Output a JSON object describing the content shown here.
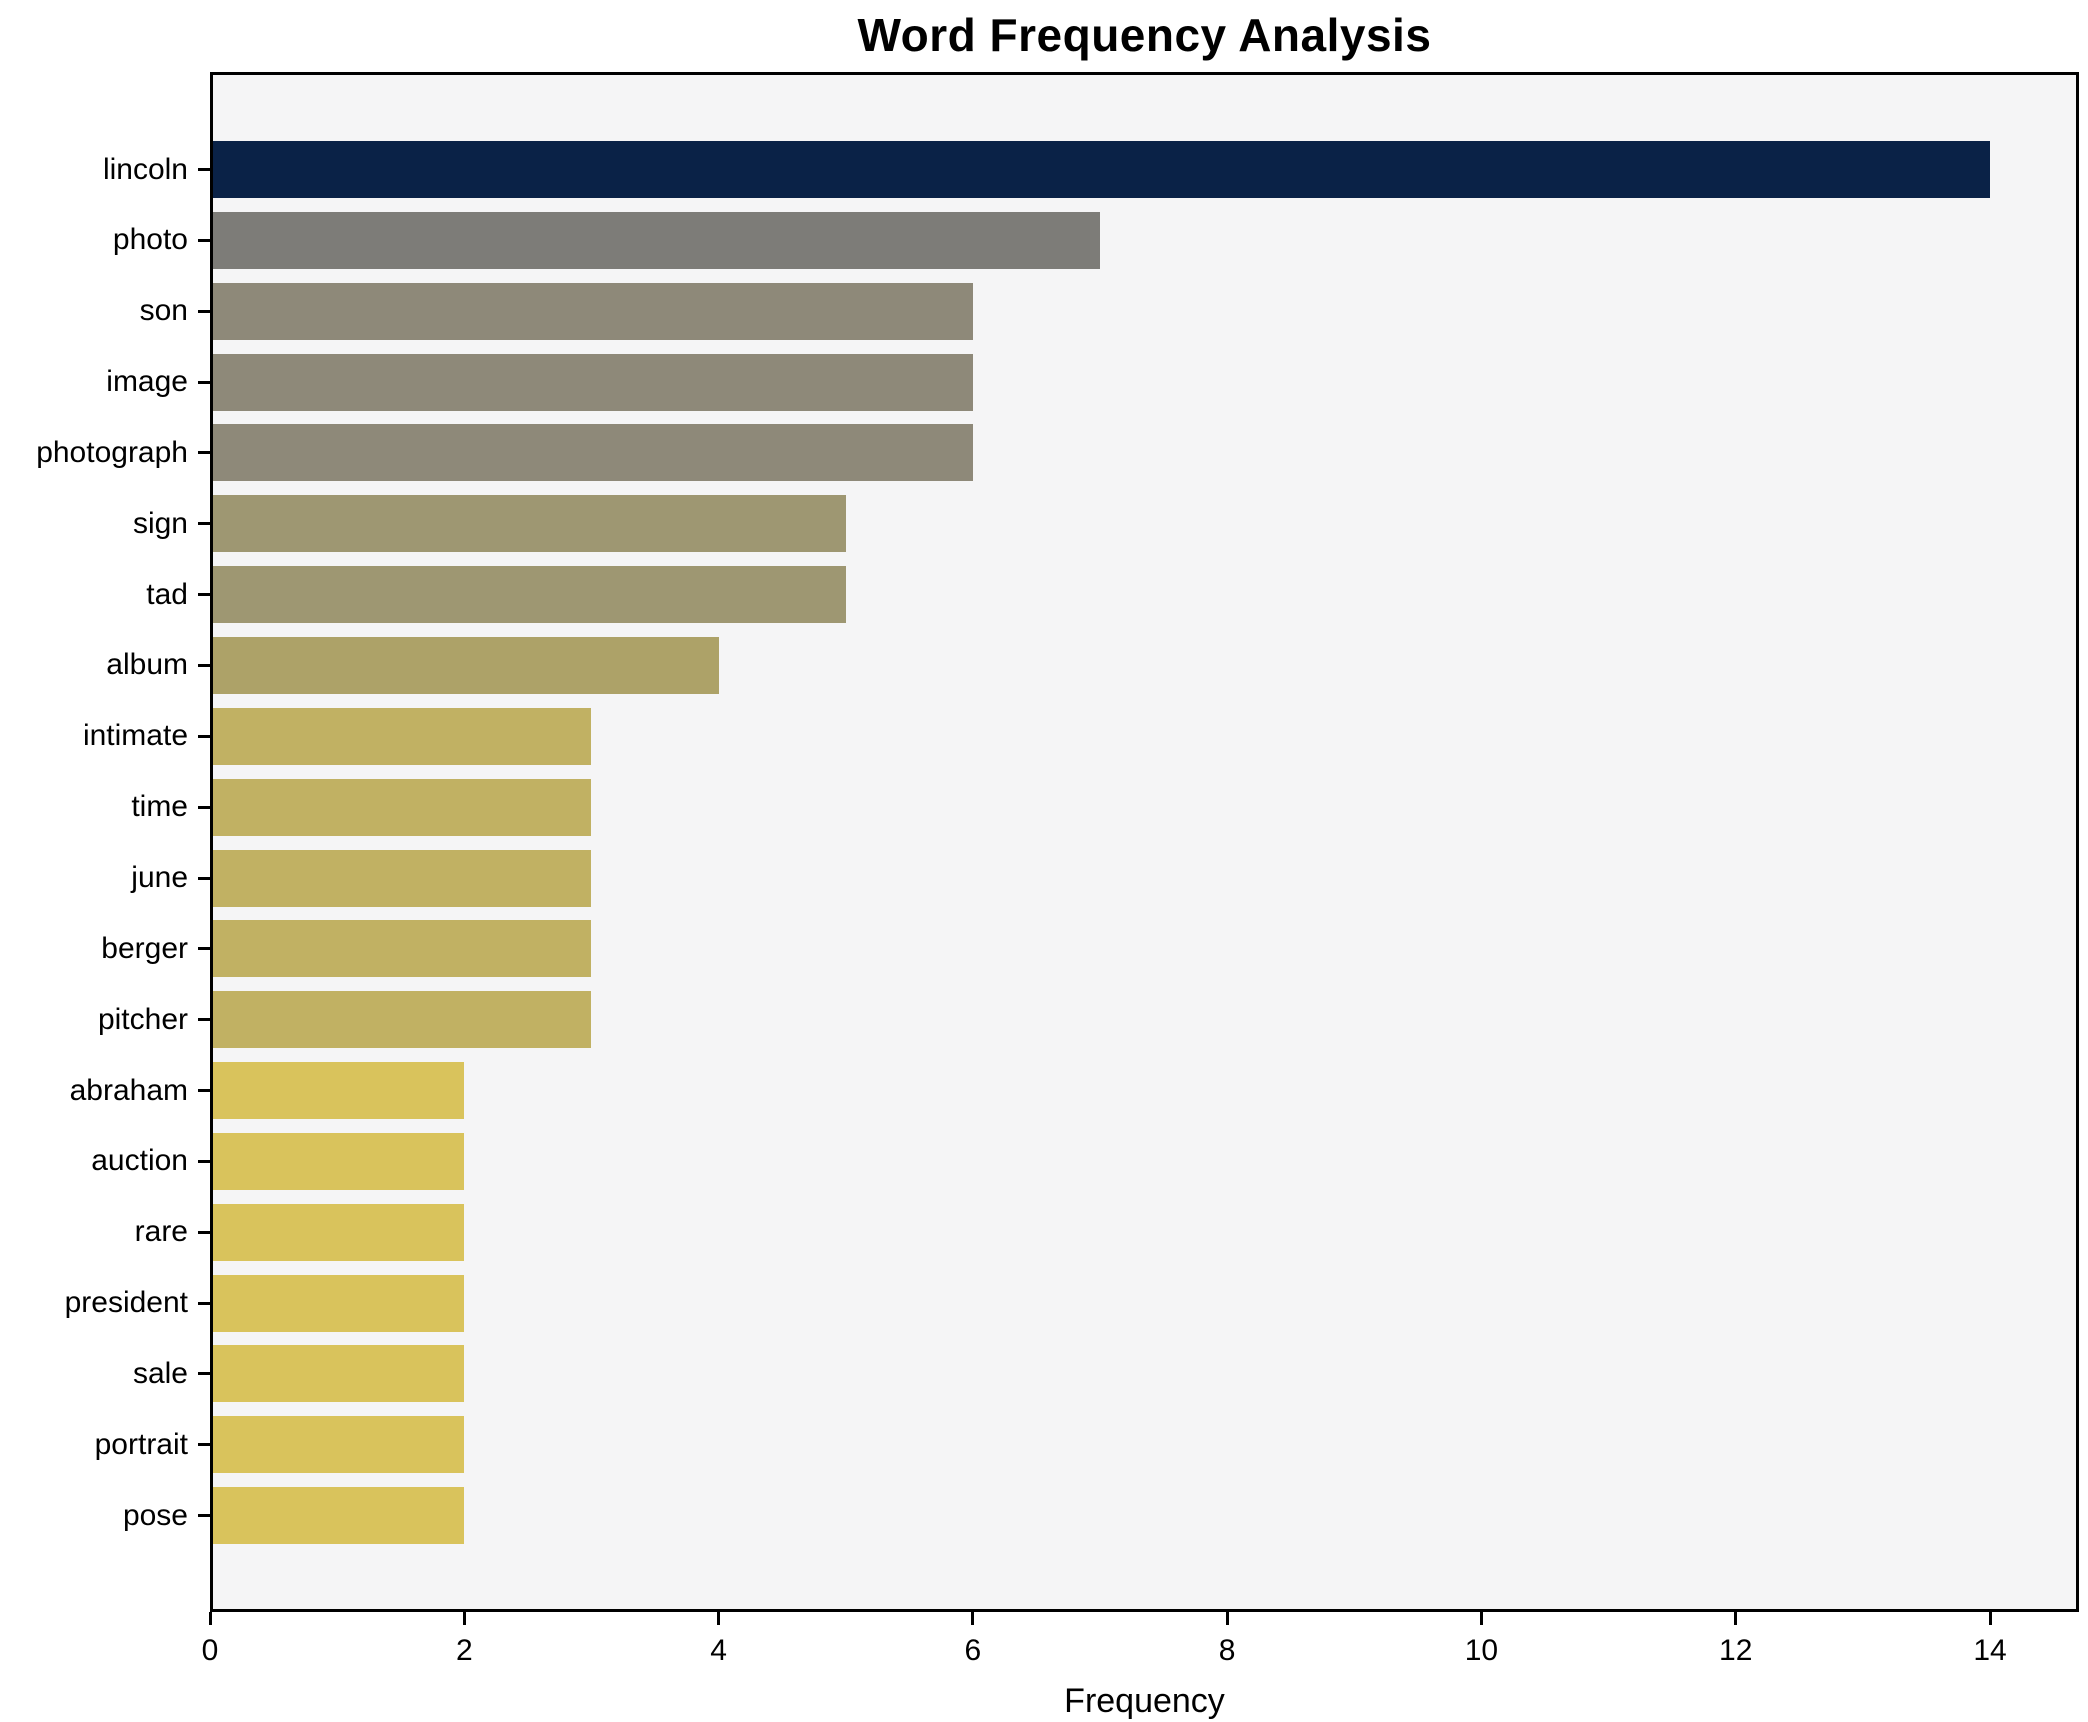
{
  "chart_data": {
    "type": "bar",
    "orientation": "horizontal",
    "title": "Word Frequency Analysis",
    "xlabel": "Frequency",
    "ylabel": "",
    "categories": [
      "lincoln",
      "photo",
      "son",
      "image",
      "photograph",
      "sign",
      "tad",
      "album",
      "intimate",
      "time",
      "june",
      "berger",
      "pitcher",
      "abraham",
      "auction",
      "rare",
      "president",
      "sale",
      "portrait",
      "pose"
    ],
    "values": [
      14,
      7,
      6,
      6,
      6,
      5,
      5,
      4,
      3,
      3,
      3,
      3,
      3,
      2,
      2,
      2,
      2,
      2,
      2,
      2
    ],
    "bar_colors": [
      "#0a2247",
      "#7d7c78",
      "#8e8979",
      "#8e8979",
      "#8e8979",
      "#9e9772",
      "#9e9772",
      "#ada268",
      "#c1b163",
      "#c1b163",
      "#c1b163",
      "#c1b163",
      "#c1b163",
      "#d9c35c",
      "#d9c35c",
      "#d9c35c",
      "#d9c35c",
      "#d9c35c",
      "#d9c35c",
      "#d9c35c"
    ],
    "xticks": [
      0,
      2,
      4,
      6,
      8,
      10,
      12,
      14
    ],
    "xlim": [
      0,
      14.7
    ],
    "grid": false,
    "legend": null,
    "plot_background": "#f5f5f6",
    "figure_background": "#ffffff",
    "axis_color": "#000000"
  }
}
